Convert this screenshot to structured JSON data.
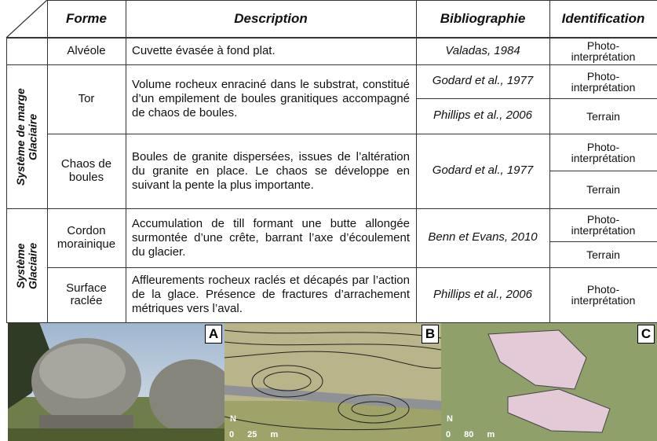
{
  "table": {
    "header": [
      "Forme",
      "Description",
      "Bibliographie",
      "Identification"
    ],
    "groups": [
      {
        "label": "Système de marge Glaciaire"
      },
      {
        "label": "Système Glaciaire"
      }
    ],
    "rows": [
      {
        "forme": "Alvéole",
        "description": "Cuvette évasée à fond plat.",
        "bibliographie": [
          "Valadas, 1984"
        ],
        "identification": [
          "Photo-interprétation"
        ]
      },
      {
        "forme": "Tor",
        "description": "Volume rocheux enraciné dans le substrat, constitué d’un empilement de boules granitiques accompagné de chaos de boules.",
        "bibliographie": [
          "Godard et al., 1977",
          "Phillips et al., 2006"
        ],
        "identification": [
          "Photo-interprétation",
          "Terrain"
        ]
      },
      {
        "forme": "Chaos de boules",
        "description": "Boules de granite dispersées, issues de l’altération du granite en place. Le chaos se développe en suivant la pente la plus importante.",
        "bibliographie": [
          "Godard et al., 1977"
        ],
        "identification": [
          "Photo-interprétation",
          "Terrain"
        ]
      },
      {
        "forme": "Cordon morainique",
        "description": "Accumulation de till formant une butte allongée surmontée d’une crête, barrant l’axe d’écoulement du glacier.",
        "bibliographie": [
          "Benn et Evans, 2010"
        ],
        "identification": [
          "Photo-interprétation",
          "Terrain"
        ]
      },
      {
        "forme": "Surface raclée",
        "description": "Affleurements rocheux raclés et décapés par l’action de la glace. Présence de fractures d’arrachement métriques vers l’aval.",
        "bibliographie": [
          "Phillips et al., 2006"
        ],
        "identification": [
          "Photo-interprétation"
        ]
      }
    ]
  },
  "figures": [
    {
      "label": "A"
    },
    {
      "label": "B",
      "north": "N",
      "scale": "0 25 m"
    },
    {
      "label": "C",
      "north": "N",
      "scale": "0 80 m"
    }
  ]
}
